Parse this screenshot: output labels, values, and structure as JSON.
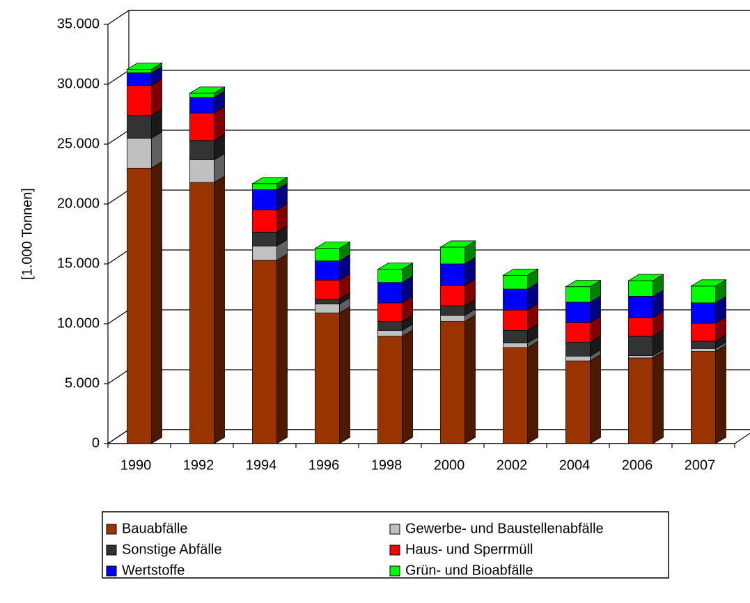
{
  "chart_data": {
    "type": "bar3d",
    "stacked": true,
    "y_label": "[1.000 Tonnen]",
    "categories": [
      "1990",
      "1992",
      "1994",
      "1996",
      "1998",
      "2000",
      "2002",
      "2004",
      "2006",
      "2007"
    ],
    "series": [
      {
        "name": "Bauabfälle",
        "color": "#993300",
        "values": [
          23000,
          21800,
          15300,
          10900,
          8950,
          10200,
          8000,
          6900,
          7150,
          7700
        ]
      },
      {
        "name": "Gewerbe- und Baustellenabfälle",
        "color": "#c0c0c0",
        "values": [
          2500,
          1900,
          1200,
          750,
          500,
          500,
          400,
          400,
          200,
          250
        ]
      },
      {
        "name": "Sonstige Abfälle",
        "color": "#333333",
        "values": [
          1900,
          1600,
          1150,
          400,
          750,
          800,
          1050,
          1150,
          1600,
          600
        ]
      },
      {
        "name": "Haus- und Sperrmüll",
        "color": "#ff0000",
        "values": [
          2500,
          2300,
          1850,
          1600,
          1550,
          1700,
          1700,
          1650,
          1550,
          1500
        ]
      },
      {
        "name": "Wertstoffe",
        "color": "#0000ff",
        "values": [
          1050,
          1300,
          1700,
          1600,
          1700,
          1800,
          1750,
          1700,
          1800,
          1700
        ]
      },
      {
        "name": "Grün- und Bioabfälle",
        "color": "#00ff00",
        "values": [
          300,
          350,
          500,
          1050,
          1100,
          1400,
          1150,
          1300,
          1300,
          1400
        ]
      }
    ],
    "ylim": [
      0,
      35000
    ],
    "yticks": [
      0,
      {
        "value": 5000,
        "label": "5.000"
      },
      {
        "value": 10000,
        "label": "10.000"
      },
      {
        "value": 15000,
        "label": "15.000"
      },
      {
        "value": 20000,
        "label": "20.000"
      },
      {
        "value": 25000,
        "label": "25.000"
      },
      {
        "value": 30000,
        "label": "30.000"
      },
      {
        "value": 35000,
        "label": "35.000"
      }
    ],
    "grid": true,
    "legend": "bottom"
  }
}
